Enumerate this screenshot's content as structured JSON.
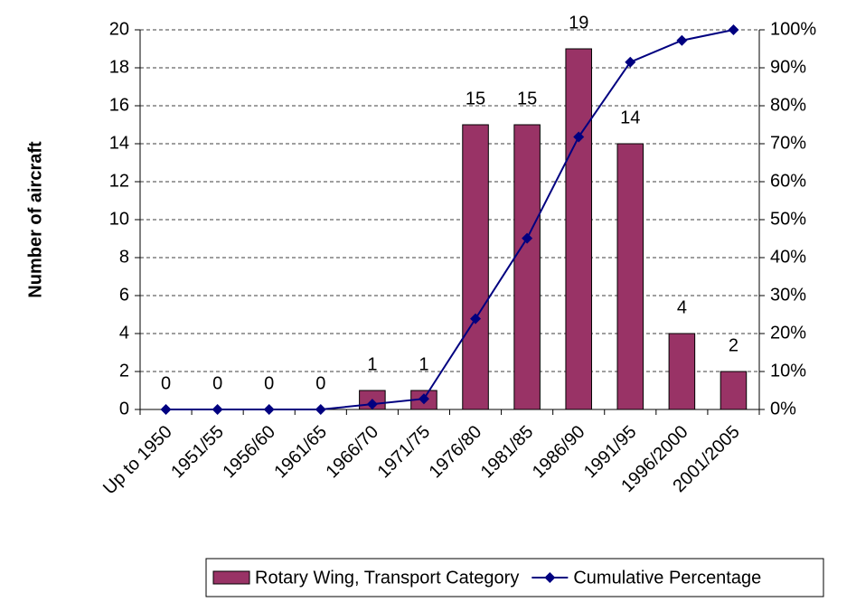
{
  "chart_data": {
    "type": "bar",
    "y_label": "Number of aircraft",
    "categories": [
      "Up to 1950",
      "1951/55",
      "1956/60",
      "1961/65",
      "1966/70",
      "1971/75",
      "1976/80",
      "1981/85",
      "1986/90",
      "1991/95",
      "1996/2000",
      "2001/2005"
    ],
    "series": [
      {
        "name": "Rotary Wing, Transport Category",
        "color": "#993366",
        "type": "bar",
        "values": [
          0,
          0,
          0,
          0,
          1,
          1,
          15,
          15,
          19,
          14,
          4,
          2
        ]
      },
      {
        "name": "Cumulative Percentage",
        "color": "#000080",
        "type": "line",
        "axis": "y2",
        "values": [
          0,
          0,
          0,
          0,
          1.4,
          2.8,
          23.9,
          45.1,
          71.8,
          91.5,
          97.2,
          100
        ]
      }
    ],
    "ylim": [
      0,
      20
    ],
    "yticks": [
      0,
      2,
      4,
      6,
      8,
      10,
      12,
      14,
      16,
      18,
      20
    ],
    "y2lim": [
      0,
      100
    ],
    "y2ticks": [
      {
        "value": 0,
        "label": "0%"
      },
      {
        "value": 10,
        "label": "10%"
      },
      {
        "value": 20,
        "label": "20%"
      },
      {
        "value": 30,
        "label": "30%"
      },
      {
        "value": 40,
        "label": "40%"
      },
      {
        "value": 50,
        "label": "50%"
      },
      {
        "value": 60,
        "label": "60%"
      },
      {
        "value": 70,
        "label": "70%"
      },
      {
        "value": 80,
        "label": "80%"
      },
      {
        "value": 90,
        "label": "90%"
      },
      {
        "value": 100,
        "label": "100%"
      }
    ],
    "grid": true,
    "legend": "bottom"
  }
}
